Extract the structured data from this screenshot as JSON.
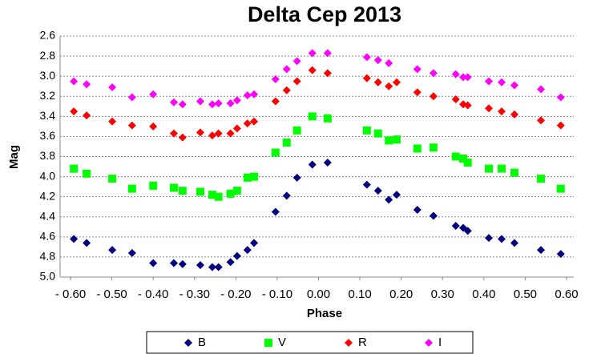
{
  "chart_data": {
    "type": "scatter",
    "title": "Delta Cep 2013",
    "x_label": "Phase",
    "y_label": "Mag",
    "xlim": [
      -0.6,
      0.6
    ],
    "xticks": [
      {
        "value": -0.6,
        "label": "- 0.60"
      },
      {
        "value": -0.5,
        "label": "- 0.50"
      },
      {
        "value": -0.4,
        "label": "- 0.40"
      },
      {
        "value": -0.3,
        "label": "- 0.30"
      },
      {
        "value": -0.2,
        "label": "- 0.20"
      },
      {
        "value": -0.1,
        "label": "- 0.10"
      },
      {
        "value": 0,
        "label": "0.00"
      },
      {
        "value": 0.1,
        "label": "0.10"
      },
      {
        "value": 0.2,
        "label": "0.20"
      },
      {
        "value": 0.3,
        "label": "0.30"
      },
      {
        "value": 0.4,
        "label": "0.40"
      },
      {
        "value": 0.5,
        "label": "0.50"
      },
      {
        "value": 0.6,
        "label": "0.60"
      }
    ],
    "ylim": [
      2.6,
      5.0
    ],
    "y_reversed": true,
    "yticks": [
      2.6,
      2.8,
      {
        "value": 3.0,
        "label": "3.0"
      },
      3.2,
      3.4,
      3.6,
      3.8,
      {
        "value": 4.0,
        "label": "4.0"
      },
      4.2,
      4.4,
      4.6,
      4.8,
      {
        "value": 5.0,
        "label": "5.0"
      }
    ],
    "grid": true,
    "legend": "bottom",
    "series": [
      {
        "name": "B",
        "color": "#000080",
        "marker": "diamond",
        "x": [
          -0.592,
          -0.561,
          -0.499,
          -0.451,
          -0.4,
          -0.35,
          -0.329,
          -0.286,
          -0.257,
          -0.242,
          -0.213,
          -0.197,
          -0.172,
          -0.156,
          -0.104,
          -0.077,
          -0.052,
          -0.015,
          0.022,
          0.117,
          0.144,
          0.17,
          0.189,
          0.239,
          0.278,
          0.332,
          0.35,
          0.361,
          0.412,
          0.443,
          0.474,
          0.538,
          0.586
        ],
        "values": [
          4.62,
          4.66,
          4.73,
          4.76,
          4.86,
          4.86,
          4.87,
          4.88,
          4.9,
          4.9,
          4.85,
          4.79,
          4.73,
          4.66,
          4.35,
          4.19,
          4.01,
          3.88,
          3.86,
          4.08,
          4.14,
          4.23,
          4.18,
          4.33,
          4.39,
          4.49,
          4.51,
          4.54,
          4.61,
          4.62,
          4.66,
          4.73,
          4.77
        ]
      },
      {
        "name": "V",
        "color": "#00ff00",
        "marker": "square",
        "x": [
          -0.592,
          -0.561,
          -0.499,
          -0.451,
          -0.4,
          -0.35,
          -0.329,
          -0.286,
          -0.257,
          -0.242,
          -0.213,
          -0.197,
          -0.172,
          -0.156,
          -0.104,
          -0.077,
          -0.052,
          -0.015,
          0.022,
          0.117,
          0.144,
          0.17,
          0.189,
          0.239,
          0.278,
          0.332,
          0.35,
          0.361,
          0.412,
          0.443,
          0.474,
          0.538,
          0.586
        ],
        "values": [
          3.92,
          3.97,
          4.02,
          4.12,
          4.09,
          4.11,
          4.14,
          4.15,
          4.18,
          4.2,
          4.17,
          4.14,
          4.01,
          4.0,
          3.76,
          3.66,
          3.54,
          3.4,
          3.42,
          3.54,
          3.57,
          3.64,
          3.63,
          3.72,
          3.71,
          3.8,
          3.82,
          3.86,
          3.92,
          3.92,
          3.96,
          4.02,
          4.12
        ]
      },
      {
        "name": "R",
        "color": "#ff0000",
        "marker": "diamond",
        "x": [
          -0.592,
          -0.561,
          -0.499,
          -0.451,
          -0.4,
          -0.35,
          -0.329,
          -0.286,
          -0.257,
          -0.242,
          -0.213,
          -0.197,
          -0.172,
          -0.156,
          -0.104,
          -0.077,
          -0.052,
          -0.015,
          0.022,
          0.117,
          0.144,
          0.17,
          0.189,
          0.239,
          0.278,
          0.332,
          0.35,
          0.361,
          0.412,
          0.443,
          0.474,
          0.538,
          0.586
        ],
        "values": [
          3.35,
          3.39,
          3.45,
          3.49,
          3.5,
          3.57,
          3.61,
          3.56,
          3.59,
          3.57,
          3.57,
          3.52,
          3.47,
          3.45,
          3.25,
          3.14,
          3.05,
          2.94,
          2.97,
          3.02,
          3.06,
          3.1,
          3.06,
          3.16,
          3.2,
          3.23,
          3.28,
          3.29,
          3.32,
          3.35,
          3.38,
          3.44,
          3.49
        ]
      },
      {
        "name": "I",
        "color": "#ff00ff",
        "marker": "diamond",
        "x": [
          -0.592,
          -0.561,
          -0.499,
          -0.451,
          -0.4,
          -0.35,
          -0.329,
          -0.286,
          -0.257,
          -0.242,
          -0.213,
          -0.197,
          -0.172,
          -0.156,
          -0.104,
          -0.077,
          -0.052,
          -0.015,
          0.022,
          0.117,
          0.144,
          0.17,
          0.239,
          0.278,
          0.332,
          0.35,
          0.361,
          0.412,
          0.443,
          0.474,
          0.538,
          0.586
        ],
        "values": [
          3.05,
          3.08,
          3.11,
          3.21,
          3.18,
          3.26,
          3.28,
          3.25,
          3.28,
          3.27,
          3.27,
          3.24,
          3.19,
          3.18,
          3.03,
          2.93,
          2.85,
          2.77,
          2.77,
          2.81,
          2.84,
          2.87,
          2.93,
          2.97,
          2.98,
          3.01,
          3.01,
          3.05,
          3.06,
          3.09,
          3.13,
          3.21
        ]
      }
    ]
  }
}
